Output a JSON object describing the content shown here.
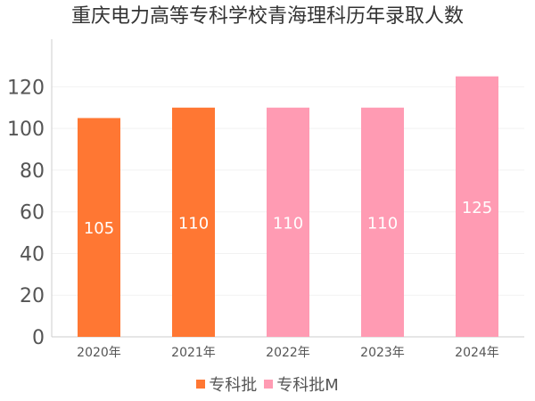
{
  "chart_data": {
    "type": "bar",
    "title": "重庆电力高等专科学校青海理科历年录取人数",
    "categories": [
      "2020年",
      "2021年",
      "2022年",
      "2023年",
      "2024年"
    ],
    "values": [
      105,
      110,
      110,
      110,
      125
    ],
    "series_of_bar": [
      "专科批",
      "专科批",
      "专科批M",
      "专科批M",
      "专科批M"
    ],
    "legend": [
      {
        "name": "专科批",
        "color": "#FF7733"
      },
      {
        "name": "专科批M",
        "color": "#FF9BB3"
      }
    ],
    "legend_position": "bottom",
    "xlabel": "",
    "ylabel": "",
    "ylim": [
      0,
      130
    ],
    "yticks": [
      0,
      20,
      40,
      60,
      80,
      100,
      120
    ],
    "grid": true
  }
}
